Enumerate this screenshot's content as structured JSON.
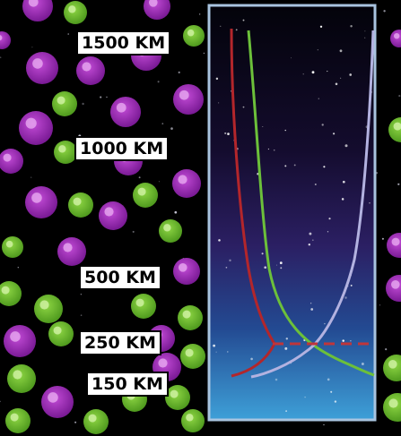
{
  "altitude_labels": [
    {
      "key": "1500",
      "text": "1500 KM"
    },
    {
      "key": "1000",
      "text": "1000 KM"
    },
    {
      "key": "500",
      "text": "500 KM"
    },
    {
      "key": "250",
      "text": "250 KM"
    },
    {
      "key": "150",
      "text": "150 KM"
    }
  ],
  "colors": {
    "background": "#000000",
    "purple_particle": "#9b2fb0",
    "green_particle": "#7cc631",
    "panel_border": "#a9c4df",
    "curve_red": "#b3262b",
    "curve_green": "#6cc03a",
    "curve_lavender": "#b3b2e0",
    "boundary_dash": "#c0353a"
  }
}
